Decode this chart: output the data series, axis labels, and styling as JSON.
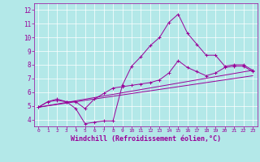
{
  "xlabel": "Windchill (Refroidissement éolien,°C)",
  "xlabel_fontsize": 6,
  "bg_color": "#b3e8e8",
  "line_color": "#990099",
  "grid_color": "#ffffff",
  "xlim": [
    -0.5,
    23.5
  ],
  "ylim": [
    3.5,
    12.5
  ],
  "yticks": [
    4,
    5,
    6,
    7,
    8,
    9,
    10,
    11,
    12
  ],
  "xticks": [
    0,
    1,
    2,
    3,
    4,
    5,
    6,
    7,
    8,
    9,
    10,
    11,
    12,
    13,
    14,
    15,
    16,
    17,
    18,
    19,
    20,
    21,
    22,
    23
  ],
  "series1_x": [
    0,
    1,
    2,
    3,
    4,
    5,
    6,
    7,
    8,
    9,
    10,
    11,
    12,
    13,
    14,
    15,
    16,
    17,
    18,
    19,
    20,
    21,
    22,
    23
  ],
  "series1_y": [
    4.9,
    5.3,
    5.4,
    5.3,
    4.8,
    3.7,
    3.8,
    3.9,
    3.9,
    6.5,
    7.9,
    8.6,
    9.4,
    10.0,
    11.1,
    11.7,
    10.3,
    9.5,
    8.7,
    8.7,
    7.9,
    8.0,
    8.0,
    7.6
  ],
  "series2_x": [
    0,
    1,
    2,
    3,
    4,
    5,
    6,
    7,
    8,
    9,
    10,
    11,
    12,
    13,
    14,
    15,
    16,
    17,
    18,
    19,
    20,
    21,
    22,
    23
  ],
  "series2_y": [
    4.9,
    5.3,
    5.5,
    5.3,
    5.3,
    4.8,
    5.5,
    5.9,
    6.3,
    6.4,
    6.5,
    6.6,
    6.7,
    6.9,
    7.4,
    8.3,
    7.8,
    7.5,
    7.2,
    7.4,
    7.8,
    7.9,
    7.9,
    7.5
  ],
  "series3_x": [
    0,
    23
  ],
  "series3_y": [
    4.9,
    7.6
  ],
  "series4_x": [
    0,
    23
  ],
  "series4_y": [
    4.9,
    7.2
  ]
}
